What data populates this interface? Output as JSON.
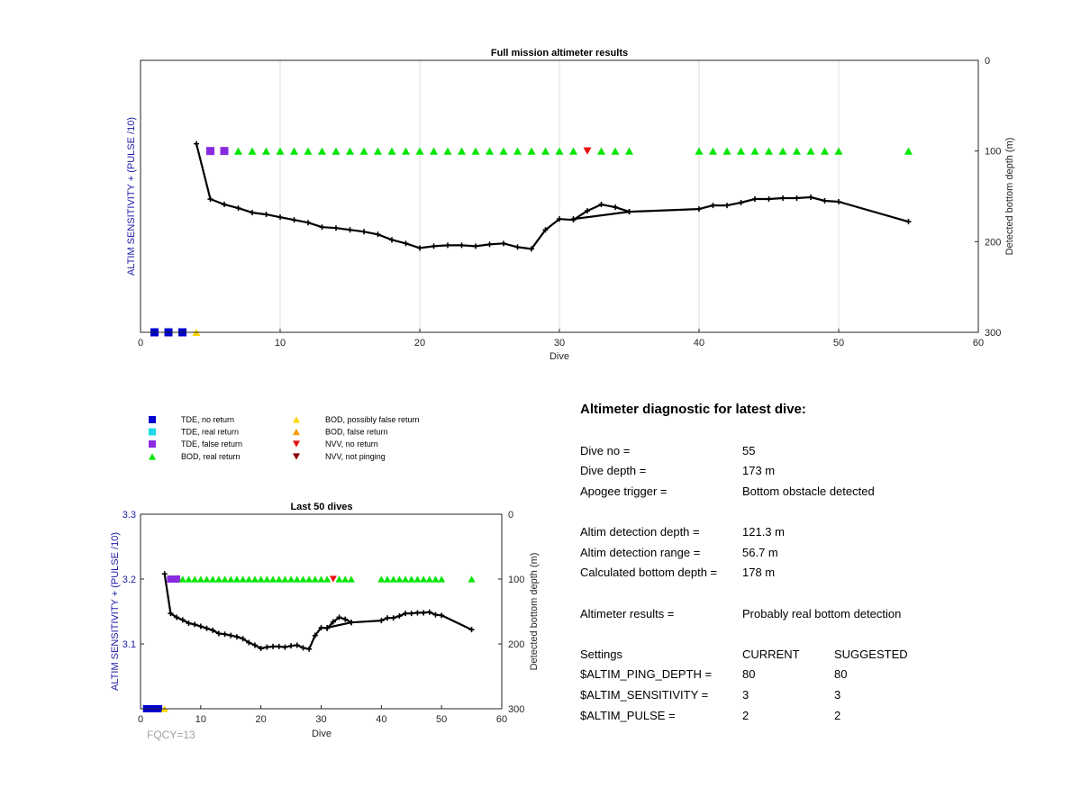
{
  "chart_data": [
    {
      "type": "line",
      "title": "Full mission altimeter results",
      "xlabel": "Dive",
      "ylabel_left": "ALTIM SENSITIVITY + (PULSE /10)",
      "ylabel_right": "Detected bottom depth (m)",
      "xlim": [
        0,
        60
      ],
      "x_ticks": [
        "0",
        "10",
        "20",
        "30",
        "40",
        "50",
        "60"
      ],
      "ylim_right": [
        0,
        300
      ],
      "y_ticks_right": [
        "0",
        "100",
        "200",
        "300"
      ],
      "grid": "x",
      "series": [
        {
          "name": "",
          "color": "#000000",
          "points": [
            [
              4,
              92
            ],
            [
              5,
              153
            ],
            [
              6,
              159
            ],
            [
              7,
              163
            ],
            [
              8,
              168
            ],
            [
              9,
              170
            ],
            [
              10,
              173
            ],
            [
              11,
              176
            ],
            [
              12,
              179
            ],
            [
              13,
              184
            ],
            [
              14,
              185
            ],
            [
              15,
              187
            ],
            [
              16,
              189
            ],
            [
              17,
              192
            ],
            [
              18,
              198
            ],
            [
              19,
              202
            ],
            [
              20,
              207
            ],
            [
              21,
              205
            ],
            [
              22,
              204
            ],
            [
              23,
              204
            ],
            [
              24,
              205
            ],
            [
              25,
              203
            ],
            [
              26,
              202
            ],
            [
              27,
              206
            ],
            [
              28,
              208
            ],
            [
              29,
              187
            ],
            [
              30,
              175
            ],
            [
              31,
              176
            ],
            [
              32,
              166
            ],
            [
              33,
              159
            ],
            [
              34,
              162
            ],
            [
              35,
              167
            ],
            [
              31,
              175
            ],
            [
              35,
              167
            ],
            [
              40,
              164
            ],
            [
              41,
              160
            ],
            [
              42,
              160
            ],
            [
              43,
              157
            ],
            [
              44,
              153
            ],
            [
              45,
              153
            ],
            [
              46,
              152
            ],
            [
              47,
              152
            ],
            [
              48,
              151
            ],
            [
              49,
              155
            ],
            [
              50,
              156
            ],
            [
              55,
              178
            ]
          ]
        }
      ],
      "markers": [
        {
          "category": "TDE, no return",
          "x": [
            1,
            2,
            3
          ],
          "y": [
            300,
            300,
            300
          ]
        },
        {
          "category": "BOD, possibly false return",
          "x": [
            4
          ],
          "y": [
            300
          ]
        },
        {
          "category": "TDE, false return",
          "x": [
            5,
            6
          ],
          "y": [
            100,
            100
          ]
        },
        {
          "category": "BOD, real return",
          "x": [
            7,
            8,
            9,
            10,
            11,
            12,
            13,
            14,
            15,
            16,
            17,
            18,
            19,
            20,
            21,
            22,
            23,
            24,
            25,
            26,
            27,
            28,
            29,
            30,
            31,
            33,
            34,
            35,
            40,
            41,
            42,
            43,
            44,
            45,
            46,
            47,
            48,
            49,
            50,
            55
          ],
          "y": [
            100,
            100,
            100,
            100,
            100,
            100,
            100,
            100,
            100,
            100,
            100,
            100,
            100,
            100,
            100,
            100,
            100,
            100,
            100,
            100,
            100,
            100,
            100,
            100,
            100,
            100,
            100,
            100,
            100,
            100,
            100,
            100,
            100,
            100,
            100,
            100,
            100,
            100,
            100,
            100
          ]
        },
        {
          "category": "NVV, no return",
          "x": [
            32
          ],
          "y": [
            100
          ]
        }
      ]
    },
    {
      "type": "line",
      "title": "Last 50 dives",
      "xlabel": "Dive",
      "ylabel_left": "ALTIM SENSITIVITY + (PULSE /10)",
      "ylabel_right": "Detected bottom depth (m)",
      "xlim": [
        0,
        60
      ],
      "x_ticks": [
        "0",
        "10",
        "20",
        "30",
        "40",
        "50",
        "60"
      ],
      "ylim_left": [
        3.3,
        3.0
      ],
      "y_ticks_left": [
        "3.3",
        "3.2",
        "3.1"
      ],
      "ylim_right": [
        0,
        300
      ],
      "y_ticks_right": [
        "0",
        "100",
        "200",
        "300"
      ],
      "grid": "none"
    }
  ],
  "legend": {
    "entries": [
      {
        "label": "TDE, no return",
        "shape": "square",
        "color": "#0000d0"
      },
      {
        "label": "TDE, real return",
        "shape": "square",
        "color": "#20d8e8"
      },
      {
        "label": "TDE, false return",
        "shape": "square",
        "color": "#8a2be2"
      },
      {
        "label": "BOD, real return",
        "shape": "triangle-up",
        "color": "#00e600"
      },
      {
        "label": "BOD, possibly false return",
        "shape": "triangle-up",
        "color": "#ffd700"
      },
      {
        "label": "BOD, false return",
        "shape": "triangle-up",
        "color": "#ff9900"
      },
      {
        "label": "NVV, no return",
        "shape": "triangle-down",
        "color": "#e81010"
      },
      {
        "label": "NVV, not pinging",
        "shape": "triangle-down",
        "color": "#8b0000"
      }
    ]
  },
  "annotation": {
    "fqcy": "FQCY=13"
  },
  "diagnostic": {
    "heading": "Altimeter diagnostic for latest dive:",
    "dive_no": {
      "label": "Dive no =",
      "value": "55"
    },
    "dive_depth": {
      "label": "Dive depth =",
      "value": "173 m"
    },
    "apogee_trigger": {
      "label": "Apogee trigger =",
      "value": "Bottom obstacle detected"
    },
    "altim_detection_depth": {
      "label": "Altim detection depth =",
      "value": "121.3 m"
    },
    "altim_detection_range": {
      "label": "Altim detection range =",
      "value": "56.7 m"
    },
    "calculated_bottom_depth": {
      "label": "Calculated bottom depth =",
      "value": "178 m"
    },
    "altimeter_results": {
      "label": "Altimeter results =",
      "value": "Probably real bottom detection"
    },
    "settings_header": {
      "label": "Settings",
      "current": "CURRENT",
      "suggested": "SUGGESTED"
    },
    "settings": [
      {
        "label": "$ALTIM_PING_DEPTH =",
        "current": "80",
        "suggested": "80"
      },
      {
        "label": "$ALTIM_SENSITIVITY =",
        "current": "3",
        "suggested": "3"
      },
      {
        "label": "$ALTIM_PULSE =",
        "current": "2",
        "suggested": "2"
      }
    ]
  }
}
